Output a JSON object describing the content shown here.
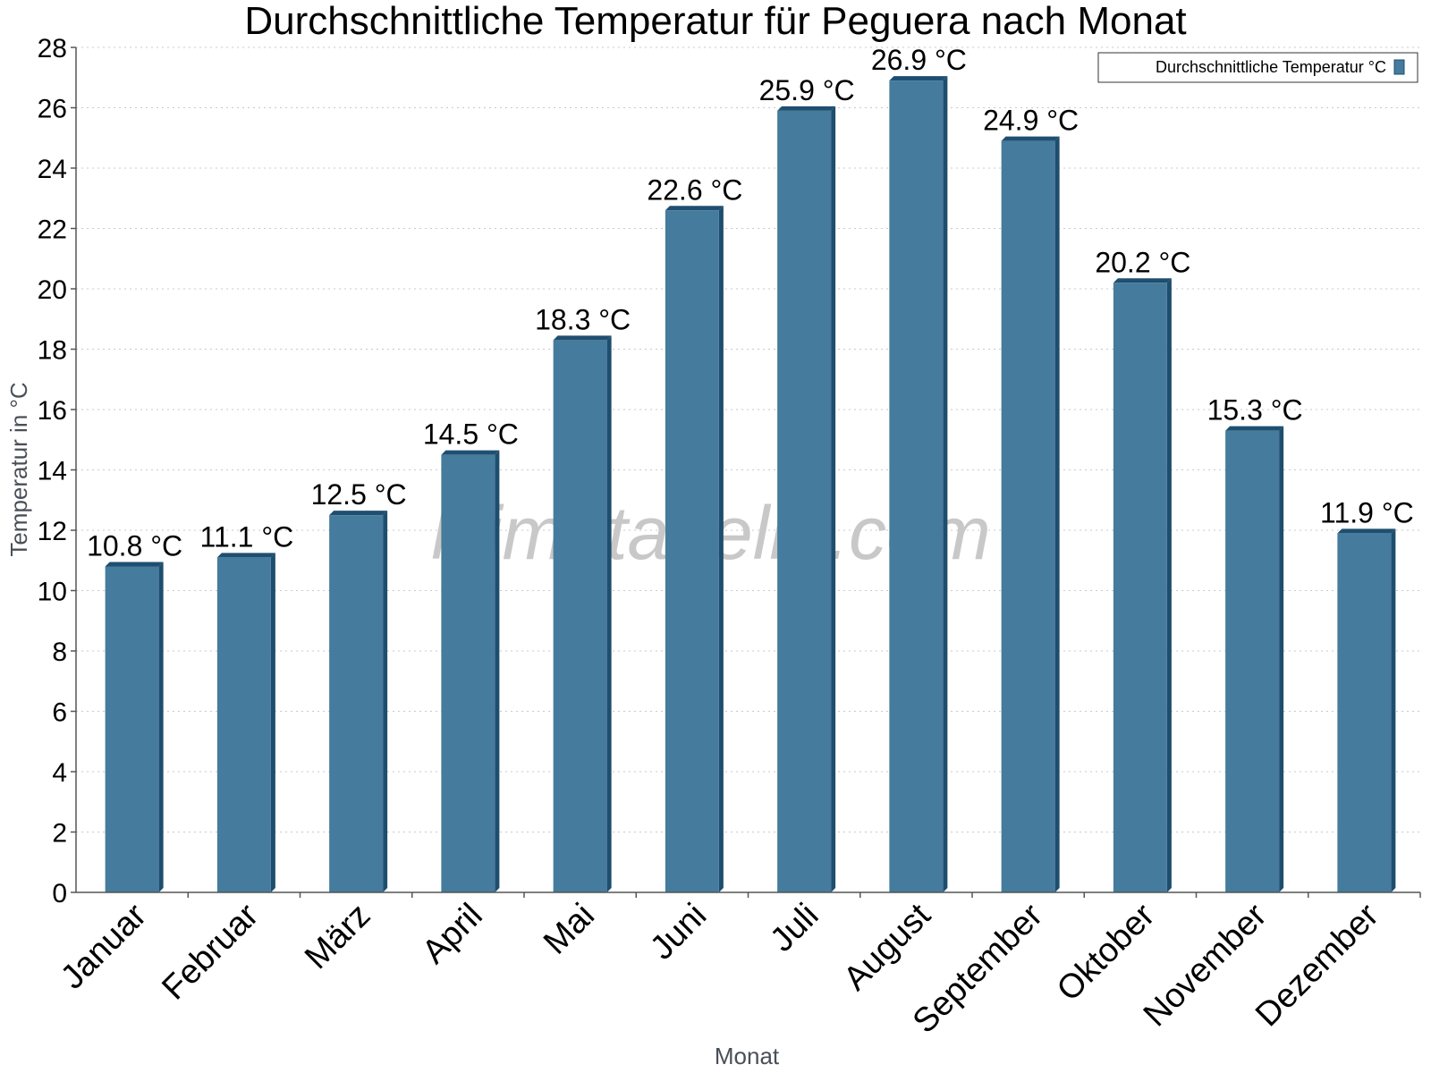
{
  "chart_data": {
    "type": "bar",
    "title": "Durchschnittliche Temperatur für Peguera nach Monat",
    "xlabel": "Monat",
    "ylabel": "Temperatur in °C",
    "categories": [
      "Januar",
      "Februar",
      "März",
      "April",
      "Mai",
      "Juni",
      "Juli",
      "August",
      "September",
      "Oktober",
      "November",
      "Dezember"
    ],
    "series": [
      {
        "name": "Durchschnittliche Temperatur °C",
        "values": [
          10.8,
          11.1,
          12.5,
          14.5,
          18.3,
          22.6,
          25.9,
          26.9,
          24.9,
          20.2,
          15.3,
          11.9
        ]
      }
    ],
    "data_labels": [
      "10.8 °C",
      "11.1 °C",
      "12.5 °C",
      "14.5 °C",
      "18.3 °C",
      "22.6 °C",
      "25.9 °C",
      "26.9 °C",
      "24.9 °C",
      "20.2 °C",
      "15.3 °C",
      "11.9 °C"
    ],
    "ylim": [
      0,
      28
    ],
    "yticks": [
      0,
      2,
      4,
      6,
      8,
      10,
      12,
      14,
      16,
      18,
      20,
      22,
      24,
      26,
      28
    ],
    "grid": true,
    "legend_position": "top-right",
    "colors": {
      "bar_face": "#457b9d",
      "bar_side": "#1d4e6e",
      "bar_top": "#1f4f70"
    },
    "watermark": "klimatabelle.com"
  }
}
